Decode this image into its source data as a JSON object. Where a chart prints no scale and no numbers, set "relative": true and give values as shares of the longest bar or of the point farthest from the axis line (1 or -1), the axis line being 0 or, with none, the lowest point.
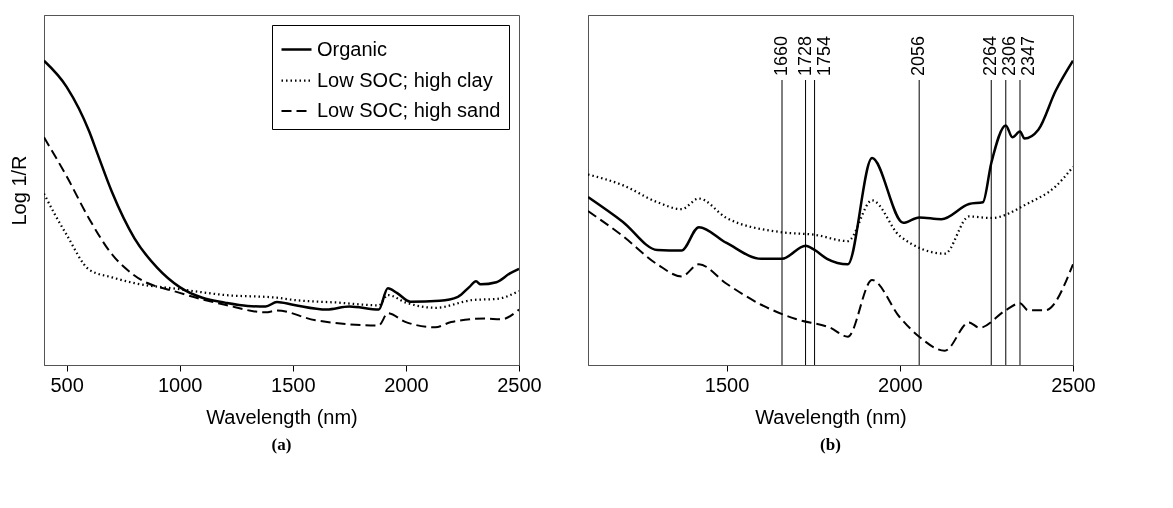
{
  "chart_data": [
    {
      "type": "line",
      "title": "(a)",
      "xlabel": "Wavelength (nm)",
      "ylabel": "Log 1/R",
      "relative": true,
      "xlim": [
        400,
        2500
      ],
      "xticks": [
        500,
        1000,
        1500,
        2000,
        2500
      ],
      "legend": "top right",
      "grid": false,
      "series": [
        {
          "name": "Organic",
          "color": "#000000",
          "line_style": "solid",
          "x": [
            400,
            500,
            600,
            635,
            700,
            800,
            900,
            1000,
            1100,
            1200,
            1300,
            1380,
            1430,
            1500,
            1650,
            1750,
            1880,
            1920,
            1960,
            2020,
            2150,
            2230,
            2280,
            2310,
            2330,
            2400,
            2460,
            2500
          ],
          "values": [
            1.0,
            0.914,
            0.767,
            0.697,
            0.569,
            0.416,
            0.32,
            0.256,
            0.221,
            0.205,
            0.194,
            0.192,
            0.207,
            0.198,
            0.182,
            0.192,
            0.182,
            0.252,
            0.237,
            0.208,
            0.211,
            0.224,
            0.256,
            0.275,
            0.265,
            0.272,
            0.301,
            0.316
          ]
        },
        {
          "name": "Low SOC; high clay",
          "color": "#000000",
          "line_style": "dotted",
          "x": [
            400,
            450,
            500,
            600,
            700,
            800,
            1000,
            1200,
            1430,
            1500,
            1700,
            1880,
            1920,
            2000,
            2130,
            2300,
            2400,
            2500
          ],
          "values": [
            0.563,
            0.492,
            0.428,
            0.313,
            0.288,
            0.269,
            0.249,
            0.23,
            0.221,
            0.214,
            0.205,
            0.196,
            0.23,
            0.205,
            0.188,
            0.214,
            0.217,
            0.243
          ]
        },
        {
          "name": "Low SOC; high sand",
          "color": "#000000",
          "line_style": "dashed",
          "x": [
            400,
            500,
            600,
            700,
            800,
            1000,
            1200,
            1380,
            1430,
            1600,
            1880,
            1920,
            2000,
            2130,
            2200,
            2350,
            2420,
            2500
          ],
          "values": [
            0.748,
            0.62,
            0.48,
            0.364,
            0.294,
            0.237,
            0.198,
            0.173,
            0.179,
            0.147,
            0.13,
            0.17,
            0.141,
            0.124,
            0.141,
            0.153,
            0.15,
            0.182
          ]
        }
      ]
    },
    {
      "type": "line",
      "title": "(b)",
      "xlabel": "Wavelength (nm)",
      "relative": true,
      "xlim": [
        1100,
        2500
      ],
      "xticks": [
        1500,
        2000,
        2500
      ],
      "grid": false,
      "series": [
        {
          "color": "#000000",
          "line_style": "solid",
          "x": [
            1100,
            1200,
            1300,
            1370,
            1420,
            1500,
            1600,
            1660,
            1728,
            1754,
            1790,
            1850,
            1920,
            2010,
            2056,
            2120,
            2200,
            2240,
            2264,
            2306,
            2325,
            2347,
            2360,
            2400,
            2450,
            2500
          ],
          "values": [
            0.552,
            0.471,
            0.378,
            0.376,
            0.453,
            0.401,
            0.349,
            0.349,
            0.392,
            0.378,
            0.349,
            0.331,
            0.68,
            0.467,
            0.485,
            0.479,
            0.529,
            0.535,
            0.663,
            0.787,
            0.748,
            0.767,
            0.744,
            0.773,
            0.901,
            1.0
          ]
        },
        {
          "color": "#000000",
          "line_style": "dotted",
          "x": [
            1100,
            1200,
            1300,
            1370,
            1420,
            1500,
            1660,
            1754,
            1850,
            1920,
            2000,
            2130,
            2200,
            2264,
            2370,
            2450,
            2500
          ],
          "values": [
            0.626,
            0.591,
            0.535,
            0.512,
            0.547,
            0.483,
            0.436,
            0.428,
            0.407,
            0.541,
            0.424,
            0.366,
            0.488,
            0.483,
            0.531,
            0.587,
            0.651
          ]
        },
        {
          "color": "#000000",
          "line_style": "dashed",
          "x": [
            1100,
            1200,
            1300,
            1370,
            1420,
            1500,
            1600,
            1700,
            1800,
            1850,
            1920,
            2000,
            2056,
            2130,
            2200,
            2230,
            2306,
            2347,
            2370,
            2420,
            2500
          ],
          "values": [
            0.506,
            0.424,
            0.331,
            0.291,
            0.331,
            0.267,
            0.198,
            0.151,
            0.122,
            0.093,
            0.279,
            0.157,
            0.093,
            0.047,
            0.14,
            0.122,
            0.18,
            0.203,
            0.18,
            0.18,
            0.331
          ]
        }
      ],
      "ref_lines": [
        {
          "axis": "x",
          "value": 1660,
          "label": "1660"
        },
        {
          "axis": "x",
          "value": 1728,
          "label": "1728"
        },
        {
          "axis": "x",
          "value": 1754,
          "label": "1754"
        },
        {
          "axis": "x",
          "value": 2056,
          "label": "2056"
        },
        {
          "axis": "x",
          "value": 2264,
          "label": "2264"
        },
        {
          "axis": "x",
          "value": 2306,
          "label": "2306"
        },
        {
          "axis": "x",
          "value": 2347,
          "label": "2347"
        }
      ]
    }
  ]
}
